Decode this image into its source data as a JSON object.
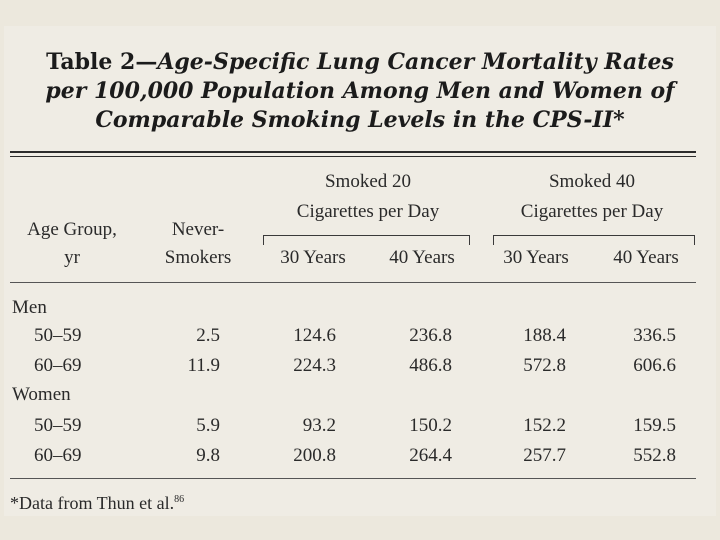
{
  "table": {
    "title_lead": "Table 2—",
    "title_line1_rest": "Age-Specific Lung Cancer Mortality Rates",
    "title_line2": "per 100,000 Population Among Men and Women of",
    "title_line3": "Comparable Smoking Levels in the CPS-II*",
    "headers": {
      "age_group_l1": "Age Group,",
      "age_group_l2": "yr",
      "never_l1": "Never-",
      "never_l2": "Smokers",
      "group20_l1": "Smoked 20",
      "group20_l2": "Cigarettes per Day",
      "group40_l1": "Smoked 40",
      "group40_l2": "Cigarettes per Day",
      "years30_a": "30 Years",
      "years40_a": "40 Years",
      "years30_b": "30 Years",
      "years40_b": "40 Years"
    },
    "groups": [
      {
        "label": "Men",
        "rows": [
          {
            "age": "50–59",
            "never": "2.5",
            "s20_30": "124.6",
            "s20_40": "236.8",
            "s40_30": "188.4",
            "s40_40": "336.5"
          },
          {
            "age": "60–69",
            "never": "11.9",
            "s20_30": "224.3",
            "s20_40": "486.8",
            "s40_30": "572.8",
            "s40_40": "606.6"
          }
        ]
      },
      {
        "label": "Women",
        "rows": [
          {
            "age": "50–59",
            "never": "5.9",
            "s20_30": "93.2",
            "s20_40": "150.2",
            "s40_30": "152.2",
            "s40_40": "159.5"
          },
          {
            "age": "60–69",
            "never": "9.8",
            "s20_30": "200.8",
            "s20_40": "264.4",
            "s40_30": "257.7",
            "s40_40": "552.8"
          }
        ]
      }
    ],
    "footnote": "*Data from Thun et al.",
    "footnote_ref": "86"
  }
}
